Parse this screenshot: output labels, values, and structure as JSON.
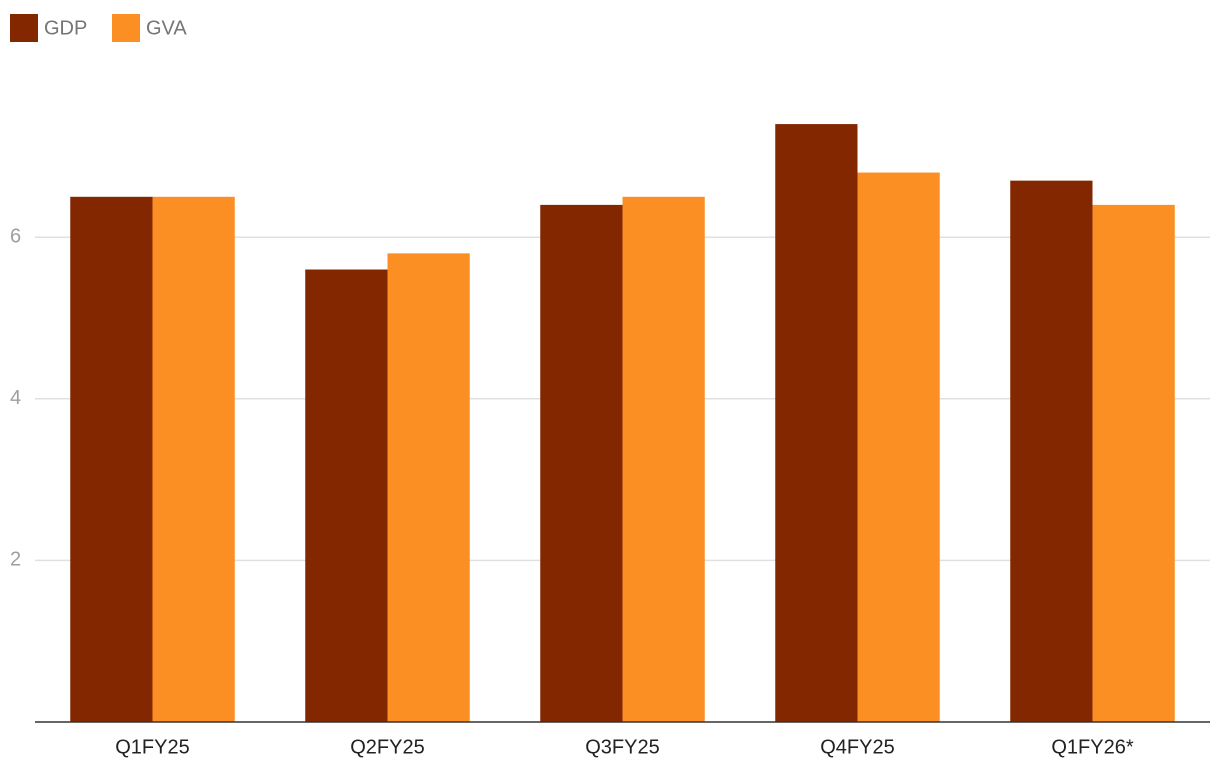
{
  "chart_data": {
    "type": "bar",
    "categories": [
      "Q1FY25",
      "Q2FY25",
      "Q3FY25",
      "Q4FY25",
      "Q1FY26*"
    ],
    "series": [
      {
        "name": "GDP",
        "color": "#832700",
        "values": [
          6.5,
          5.6,
          6.4,
          7.4,
          6.7
        ]
      },
      {
        "name": "GVA",
        "color": "#fb8f24",
        "values": [
          6.5,
          5.8,
          6.5,
          6.8,
          6.4
        ]
      }
    ],
    "ylim": [
      0,
      8
    ],
    "yticks": [
      2,
      4,
      6
    ],
    "grid": true,
    "legend": "top-left"
  }
}
